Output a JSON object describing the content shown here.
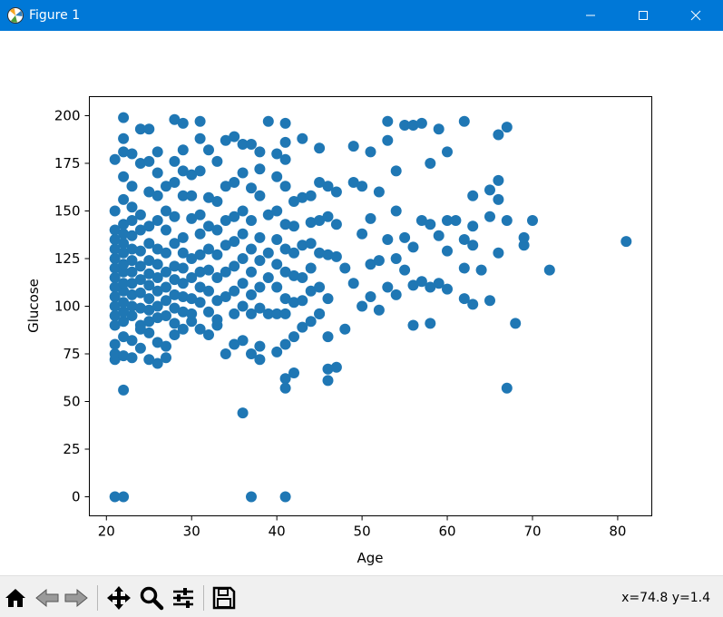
{
  "window": {
    "title": "Figure 1"
  },
  "toolbar": {
    "icons": [
      "home-icon",
      "back-icon",
      "forward-icon",
      "pan-icon",
      "zoom-icon",
      "configure-icon",
      "save-icon"
    ],
    "coords": "x=74.8 y=1.4"
  },
  "colors": {
    "titlebar": "#0078d7",
    "marker": "#1f77b4",
    "toolbar_bg": "#f0f0f0"
  },
  "chart_data": {
    "type": "scatter",
    "xlabel": "Age",
    "ylabel": "Glucose",
    "xlim": [
      18,
      84
    ],
    "ylim": [
      -10,
      210
    ],
    "xticks": [
      20,
      30,
      40,
      50,
      60,
      70,
      80
    ],
    "yticks": [
      0,
      25,
      50,
      75,
      100,
      125,
      150,
      175,
      200
    ],
    "grid": false,
    "points": [
      [
        21,
        0
      ],
      [
        22,
        0
      ],
      [
        37,
        0
      ],
      [
        41,
        0
      ],
      [
        36,
        44
      ],
      [
        22,
        56
      ],
      [
        41,
        57
      ],
      [
        67,
        57
      ],
      [
        41,
        62
      ],
      [
        42,
        65
      ],
      [
        46,
        61
      ],
      [
        46,
        67
      ],
      [
        47,
        68
      ],
      [
        21,
        72
      ],
      [
        21,
        75
      ],
      [
        22,
        74
      ],
      [
        23,
        73
      ],
      [
        24,
        78
      ],
      [
        25,
        72
      ],
      [
        26,
        70
      ],
      [
        27,
        73
      ],
      [
        21,
        80
      ],
      [
        22,
        84
      ],
      [
        23,
        82
      ],
      [
        24,
        88
      ],
      [
        25,
        86
      ],
      [
        26,
        81
      ],
      [
        27,
        79
      ],
      [
        28,
        85
      ],
      [
        29,
        88
      ],
      [
        30,
        92
      ],
      [
        31,
        88
      ],
      [
        32,
        85
      ],
      [
        33,
        90
      ],
      [
        34,
        75
      ],
      [
        35,
        80
      ],
      [
        36,
        82
      ],
      [
        37,
        75
      ],
      [
        38,
        72
      ],
      [
        38,
        79
      ],
      [
        40,
        76
      ],
      [
        41,
        80
      ],
      [
        42,
        84
      ],
      [
        43,
        89
      ],
      [
        44,
        92
      ],
      [
        45,
        96
      ],
      [
        46,
        84
      ],
      [
        48,
        88
      ],
      [
        21,
        90
      ],
      [
        21,
        95
      ],
      [
        21,
        100
      ],
      [
        21,
        105
      ],
      [
        21,
        110
      ],
      [
        21,
        115
      ],
      [
        21,
        120
      ],
      [
        21,
        125
      ],
      [
        21,
        130
      ],
      [
        21,
        135
      ],
      [
        21,
        140
      ],
      [
        21,
        150
      ],
      [
        21,
        177
      ],
      [
        22,
        92
      ],
      [
        22,
        97
      ],
      [
        22,
        102
      ],
      [
        22,
        108
      ],
      [
        22,
        112
      ],
      [
        22,
        118
      ],
      [
        22,
        122
      ],
      [
        22,
        128
      ],
      [
        22,
        133
      ],
      [
        22,
        138
      ],
      [
        22,
        143
      ],
      [
        22,
        156
      ],
      [
        22,
        168
      ],
      [
        22,
        181
      ],
      [
        22,
        188
      ],
      [
        22,
        199
      ],
      [
        23,
        95
      ],
      [
        23,
        100
      ],
      [
        23,
        106
      ],
      [
        23,
        112
      ],
      [
        23,
        118
      ],
      [
        23,
        124
      ],
      [
        23,
        130
      ],
      [
        23,
        137
      ],
      [
        23,
        145
      ],
      [
        23,
        152
      ],
      [
        23,
        163
      ],
      [
        23,
        180
      ],
      [
        24,
        90
      ],
      [
        24,
        99
      ],
      [
        24,
        107
      ],
      [
        24,
        114
      ],
      [
        24,
        121
      ],
      [
        24,
        129
      ],
      [
        24,
        140
      ],
      [
        24,
        148
      ],
      [
        24,
        175
      ],
      [
        24,
        193
      ],
      [
        25,
        92
      ],
      [
        25,
        98
      ],
      [
        25,
        104
      ],
      [
        25,
        111
      ],
      [
        25,
        117
      ],
      [
        25,
        124
      ],
      [
        25,
        133
      ],
      [
        25,
        142
      ],
      [
        25,
        160
      ],
      [
        25,
        176
      ],
      [
        25,
        193
      ],
      [
        26,
        94
      ],
      [
        26,
        100
      ],
      [
        26,
        108
      ],
      [
        26,
        115
      ],
      [
        26,
        122
      ],
      [
        26,
        130
      ],
      [
        26,
        145
      ],
      [
        26,
        158
      ],
      [
        26,
        170
      ],
      [
        26,
        181
      ],
      [
        27,
        95
      ],
      [
        27,
        103
      ],
      [
        27,
        110
      ],
      [
        27,
        118
      ],
      [
        27,
        128
      ],
      [
        27,
        140
      ],
      [
        27,
        150
      ],
      [
        27,
        163
      ],
      [
        28,
        91
      ],
      [
        28,
        99
      ],
      [
        28,
        106
      ],
      [
        28,
        114
      ],
      [
        28,
        121
      ],
      [
        28,
        133
      ],
      [
        28,
        147
      ],
      [
        28,
        165
      ],
      [
        28,
        176
      ],
      [
        28,
        198
      ],
      [
        29,
        97
      ],
      [
        29,
        105
      ],
      [
        29,
        112
      ],
      [
        29,
        120
      ],
      [
        29,
        128
      ],
      [
        29,
        136
      ],
      [
        29,
        158
      ],
      [
        29,
        171
      ],
      [
        29,
        182
      ],
      [
        29,
        196
      ],
      [
        30,
        96
      ],
      [
        30,
        104
      ],
      [
        30,
        115
      ],
      [
        30,
        125
      ],
      [
        30,
        146
      ],
      [
        30,
        158
      ],
      [
        30,
        169
      ],
      [
        31,
        102
      ],
      [
        31,
        110
      ],
      [
        31,
        118
      ],
      [
        31,
        127
      ],
      [
        31,
        138
      ],
      [
        31,
        148
      ],
      [
        31,
        171
      ],
      [
        31,
        188
      ],
      [
        31,
        197
      ],
      [
        32,
        97
      ],
      [
        32,
        108
      ],
      [
        32,
        119
      ],
      [
        32,
        130
      ],
      [
        32,
        142
      ],
      [
        32,
        157
      ],
      [
        32,
        182
      ],
      [
        33,
        93
      ],
      [
        33,
        103
      ],
      [
        33,
        115
      ],
      [
        33,
        127
      ],
      [
        33,
        140
      ],
      [
        33,
        155
      ],
      [
        33,
        176
      ],
      [
        34,
        105
      ],
      [
        34,
        118
      ],
      [
        34,
        132
      ],
      [
        34,
        145
      ],
      [
        34,
        163
      ],
      [
        34,
        187
      ],
      [
        35,
        96
      ],
      [
        35,
        108
      ],
      [
        35,
        121
      ],
      [
        35,
        134
      ],
      [
        35,
        147
      ],
      [
        35,
        165
      ],
      [
        35,
        189
      ],
      [
        36,
        100
      ],
      [
        36,
        112
      ],
      [
        36,
        125
      ],
      [
        36,
        138
      ],
      [
        36,
        150
      ],
      [
        36,
        170
      ],
      [
        36,
        185
      ],
      [
        37,
        96
      ],
      [
        37,
        106
      ],
      [
        37,
        118
      ],
      [
        37,
        130
      ],
      [
        37,
        145
      ],
      [
        37,
        162
      ],
      [
        37,
        185
      ],
      [
        38,
        99
      ],
      [
        38,
        110
      ],
      [
        38,
        124
      ],
      [
        38,
        136
      ],
      [
        38,
        158
      ],
      [
        38,
        172
      ],
      [
        38,
        181
      ],
      [
        39,
        96
      ],
      [
        39,
        115
      ],
      [
        39,
        128
      ],
      [
        39,
        148
      ],
      [
        39,
        197
      ],
      [
        40,
        96
      ],
      [
        40,
        110
      ],
      [
        40,
        122
      ],
      [
        40,
        135
      ],
      [
        40,
        150
      ],
      [
        40,
        168
      ],
      [
        40,
        180
      ],
      [
        41,
        96
      ],
      [
        41,
        104
      ],
      [
        41,
        118
      ],
      [
        41,
        130
      ],
      [
        41,
        143
      ],
      [
        41,
        163
      ],
      [
        41,
        177
      ],
      [
        41,
        186
      ],
      [
        41,
        196
      ],
      [
        42,
        102
      ],
      [
        42,
        116
      ],
      [
        42,
        128
      ],
      [
        42,
        142
      ],
      [
        42,
        155
      ],
      [
        43,
        103
      ],
      [
        43,
        115
      ],
      [
        43,
        132
      ],
      [
        43,
        157
      ],
      [
        43,
        188
      ],
      [
        44,
        108
      ],
      [
        44,
        120
      ],
      [
        44,
        133
      ],
      [
        44,
        144
      ],
      [
        44,
        158
      ],
      [
        45,
        96
      ],
      [
        45,
        110
      ],
      [
        45,
        128
      ],
      [
        45,
        145
      ],
      [
        45,
        165
      ],
      [
        45,
        183
      ],
      [
        46,
        104
      ],
      [
        46,
        127
      ],
      [
        46,
        147
      ],
      [
        46,
        163
      ],
      [
        47,
        126
      ],
      [
        47,
        143
      ],
      [
        47,
        160
      ],
      [
        48,
        120
      ],
      [
        49,
        112
      ],
      [
        49,
        165
      ],
      [
        49,
        184
      ],
      [
        50,
        100
      ],
      [
        50,
        138
      ],
      [
        50,
        163
      ],
      [
        51,
        105
      ],
      [
        51,
        122
      ],
      [
        51,
        146
      ],
      [
        51,
        181
      ],
      [
        52,
        98
      ],
      [
        52,
        124
      ],
      [
        52,
        160
      ],
      [
        53,
        110
      ],
      [
        53,
        135
      ],
      [
        53,
        187
      ],
      [
        53,
        197
      ],
      [
        54,
        106
      ],
      [
        54,
        125
      ],
      [
        54,
        150
      ],
      [
        54,
        171
      ],
      [
        55,
        119
      ],
      [
        55,
        136
      ],
      [
        55,
        195
      ],
      [
        56,
        90
      ],
      [
        56,
        111
      ],
      [
        56,
        131
      ],
      [
        56,
        195
      ],
      [
        57,
        113
      ],
      [
        57,
        145
      ],
      [
        57,
        196
      ],
      [
        58,
        91
      ],
      [
        58,
        110
      ],
      [
        58,
        143
      ],
      [
        58,
        175
      ],
      [
        59,
        112
      ],
      [
        59,
        137
      ],
      [
        59,
        193
      ],
      [
        60,
        109
      ],
      [
        60,
        129
      ],
      [
        60,
        145
      ],
      [
        60,
        181
      ],
      [
        61,
        145
      ],
      [
        62,
        104
      ],
      [
        62,
        120
      ],
      [
        62,
        135
      ],
      [
        62,
        197
      ],
      [
        63,
        101
      ],
      [
        63,
        132
      ],
      [
        63,
        142
      ],
      [
        63,
        158
      ],
      [
        64,
        119
      ],
      [
        65,
        103
      ],
      [
        65,
        147
      ],
      [
        65,
        161
      ],
      [
        66,
        128
      ],
      [
        66,
        156
      ],
      [
        66,
        166
      ],
      [
        66,
        190
      ],
      [
        67,
        145
      ],
      [
        67,
        194
      ],
      [
        68,
        91
      ],
      [
        69,
        132
      ],
      [
        69,
        136
      ],
      [
        70,
        145
      ],
      [
        72,
        119
      ],
      [
        81,
        134
      ]
    ]
  }
}
